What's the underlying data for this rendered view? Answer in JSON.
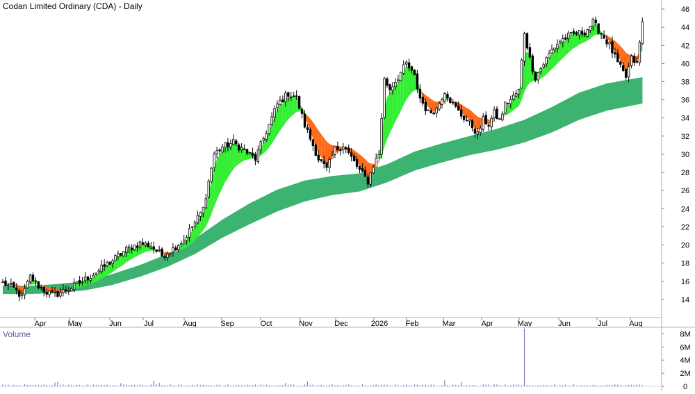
{
  "header": {
    "title": "Codan Limited Ordinary (CDA) - Daily"
  },
  "volume_panel": {
    "title": "Volume"
  },
  "colors": {
    "long_band": "#3cb371",
    "short_band_up": "#33ee33",
    "short_band_down": "#ff6a1a",
    "short_band_neutral": "#f4a6a6",
    "candle": "#000000",
    "volume_bar": "#7a7ac0",
    "grid": "#c8c8c8"
  },
  "chart_data": {
    "type": "candlestick",
    "title": "Codan Limited Ordinary (CDA) - Daily",
    "x_tick_labels": [
      "Apr",
      "May",
      "Jun",
      "Jul",
      "Aug",
      "Sep",
      "Oct",
      "Nov",
      "Dec",
      "2026",
      "Feb",
      "Mar",
      "Apr",
      "May",
      "Jun",
      "Jul",
      "Aug"
    ],
    "price_axis": {
      "ylim": [
        12,
        47
      ],
      "tick_labels": [
        "14",
        "16",
        "18",
        "20",
        "22",
        "24",
        "26",
        "28",
        "30",
        "32",
        "34",
        "36",
        "38",
        "40",
        "42",
        "44",
        "46"
      ],
      "side": "right"
    },
    "volume_axis": {
      "ylim": [
        0,
        9000000
      ],
      "tick_labels": [
        "0",
        "2M",
        "4M",
        "6M",
        "8M"
      ],
      "side": "right"
    },
    "close_keypoints": [
      [
        0,
        15.8
      ],
      [
        4,
        15.2
      ],
      [
        7,
        14.3
      ],
      [
        10,
        16.5
      ],
      [
        13,
        15.5
      ],
      [
        16,
        14.8
      ],
      [
        19,
        14.5
      ],
      [
        22,
        14.9
      ],
      [
        25,
        15.3
      ],
      [
        30,
        16.2
      ],
      [
        35,
        17.2
      ],
      [
        40,
        18.3
      ],
      [
        45,
        19.5
      ],
      [
        50,
        20.2
      ],
      [
        54,
        19.9
      ],
      [
        58,
        18.8
      ],
      [
        62,
        19.6
      ],
      [
        66,
        20.6
      ],
      [
        70,
        22.5
      ],
      [
        73,
        24.0
      ],
      [
        75,
        27.0
      ],
      [
        77,
        30.0
      ],
      [
        80,
        30.8
      ],
      [
        84,
        31.3
      ],
      [
        88,
        30.4
      ],
      [
        92,
        29.5
      ],
      [
        96,
        32.5
      ],
      [
        100,
        35.5
      ],
      [
        104,
        36.7
      ],
      [
        107,
        36.2
      ],
      [
        110,
        33.2
      ],
      [
        113,
        31.0
      ],
      [
        115,
        29.5
      ],
      [
        118,
        28.3
      ],
      [
        121,
        30.5
      ],
      [
        124,
        31.0
      ],
      [
        127,
        29.6
      ],
      [
        130,
        28.2
      ],
      [
        133,
        27.0
      ],
      [
        135,
        28.8
      ],
      [
        137,
        30.0
      ],
      [
        139,
        38.2
      ],
      [
        141,
        37.2
      ],
      [
        144,
        38.5
      ],
      [
        147,
        40.0
      ],
      [
        150,
        38.5
      ],
      [
        152,
        36.2
      ],
      [
        155,
        34.5
      ],
      [
        158,
        35.0
      ],
      [
        161,
        37.0
      ],
      [
        164,
        35.5
      ],
      [
        167,
        34.3
      ],
      [
        170,
        33.5
      ],
      [
        173,
        32.2
      ],
      [
        175,
        33.8
      ],
      [
        177,
        33.3
      ],
      [
        179,
        34.5
      ],
      [
        181,
        33.7
      ],
      [
        183,
        35.5
      ],
      [
        185,
        36.0
      ],
      [
        188,
        37.0
      ],
      [
        190,
        43.5
      ],
      [
        192,
        40.5
      ],
      [
        194,
        38.5
      ],
      [
        197,
        40.0
      ],
      [
        200,
        41.5
      ],
      [
        203,
        42.5
      ],
      [
        206,
        43.0
      ],
      [
        209,
        43.3
      ],
      [
        212,
        43.5
      ],
      [
        215,
        44.5
      ],
      [
        218,
        43.3
      ],
      [
        221,
        42.0
      ],
      [
        224,
        40.0
      ],
      [
        227,
        38.5
      ],
      [
        229,
        40.5
      ],
      [
        231,
        40.0
      ],
      [
        233,
        44.5
      ]
    ],
    "short_term_band_end": [
      40.6,
      41.3
    ],
    "long_term_band_keypoints": [
      [
        0,
        14.6,
        15.5
      ],
      [
        10,
        14.6,
        15.5
      ],
      [
        20,
        14.7,
        15.7
      ],
      [
        30,
        15.0,
        16.0
      ],
      [
        40,
        15.6,
        16.8
      ],
      [
        50,
        16.5,
        17.8
      ],
      [
        60,
        17.6,
        19.0
      ],
      [
        70,
        19.0,
        20.7
      ],
      [
        80,
        20.8,
        22.8
      ],
      [
        90,
        22.3,
        24.6
      ],
      [
        100,
        23.7,
        26.1
      ],
      [
        110,
        24.8,
        27.1
      ],
      [
        120,
        25.5,
        27.6
      ],
      [
        130,
        25.9,
        27.9
      ],
      [
        140,
        26.9,
        28.9
      ],
      [
        150,
        28.2,
        30.3
      ],
      [
        160,
        29.1,
        31.2
      ],
      [
        170,
        29.9,
        32.0
      ],
      [
        180,
        30.5,
        32.8
      ],
      [
        190,
        31.3,
        33.8
      ],
      [
        200,
        32.4,
        35.2
      ],
      [
        210,
        33.8,
        36.8
      ],
      [
        220,
        34.8,
        37.8
      ],
      [
        233,
        35.6,
        38.5
      ]
    ],
    "volume_notes": {
      "typical": 200000,
      "spike_index": 190,
      "spike_value": 8800000
    }
  }
}
